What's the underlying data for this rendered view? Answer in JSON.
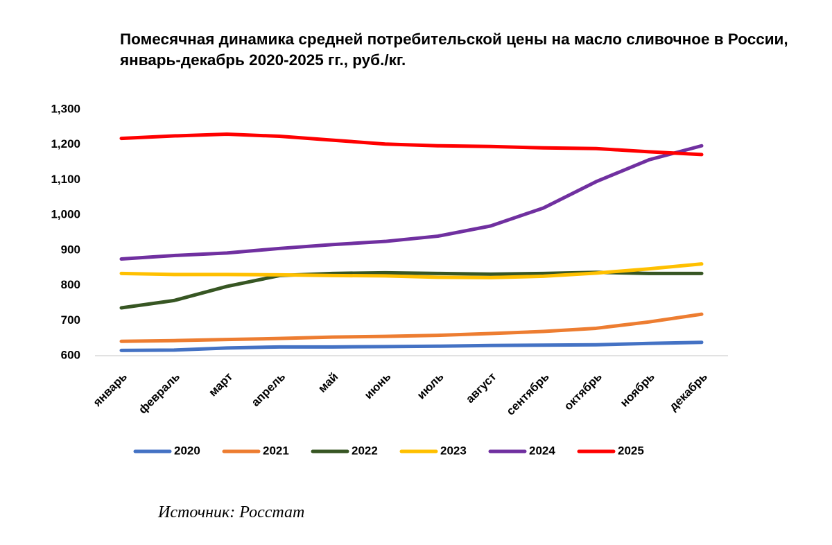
{
  "chart_data": {
    "type": "line",
    "title": "Помесячная динамика средней потребительской цены на масло сливочное в России, январь-декабрь 2020-2025 гг., руб./кг.",
    "source": "Источник: Росстат",
    "categories": [
      "январь",
      "февраль",
      "март",
      "апрель",
      "май",
      "июнь",
      "июль",
      "август",
      "сентябрь",
      "октябрь",
      "ноябрь",
      "декабрь"
    ],
    "series": [
      {
        "name": "2020",
        "color": "#4472c4",
        "values": [
          615,
          616,
          622,
          625,
          625,
          626,
          627,
          629,
          630,
          631,
          635,
          638
        ]
      },
      {
        "name": "2021",
        "color": "#ed7d31",
        "values": [
          641,
          643,
          646,
          649,
          653,
          655,
          658,
          663,
          669,
          678,
          696,
          718
        ]
      },
      {
        "name": "2022",
        "color": "#375623",
        "values": [
          736,
          757,
          797,
          828,
          834,
          836,
          834,
          832,
          834,
          837,
          834,
          834
        ]
      },
      {
        "name": "2023",
        "color": "#ffc000",
        "values": [
          834,
          831,
          831,
          830,
          828,
          827,
          823,
          822,
          826,
          835,
          847,
          861
        ]
      },
      {
        "name": "2024",
        "color": "#7030a0",
        "values": [
          875,
          885,
          892,
          905,
          916,
          925,
          940,
          969,
          1020,
          1095,
          1157,
          1197
        ]
      },
      {
        "name": "2025",
        "color": "#ff0000",
        "values": [
          1218,
          1225,
          1230,
          1224,
          1213,
          1202,
          1197,
          1195,
          1191,
          1189,
          1180,
          1172
        ]
      }
    ],
    "ylim": [
      600,
      1300
    ],
    "yticks": [
      600,
      700,
      800,
      900,
      {
        "value": 1000,
        "label": "1,000"
      },
      {
        "value": 1100,
        "label": "1,100"
      },
      {
        "value": 1200,
        "label": "1,200"
      },
      {
        "value": 1300,
        "label": "1,300"
      }
    ],
    "grid": false,
    "legend": "bottom"
  }
}
